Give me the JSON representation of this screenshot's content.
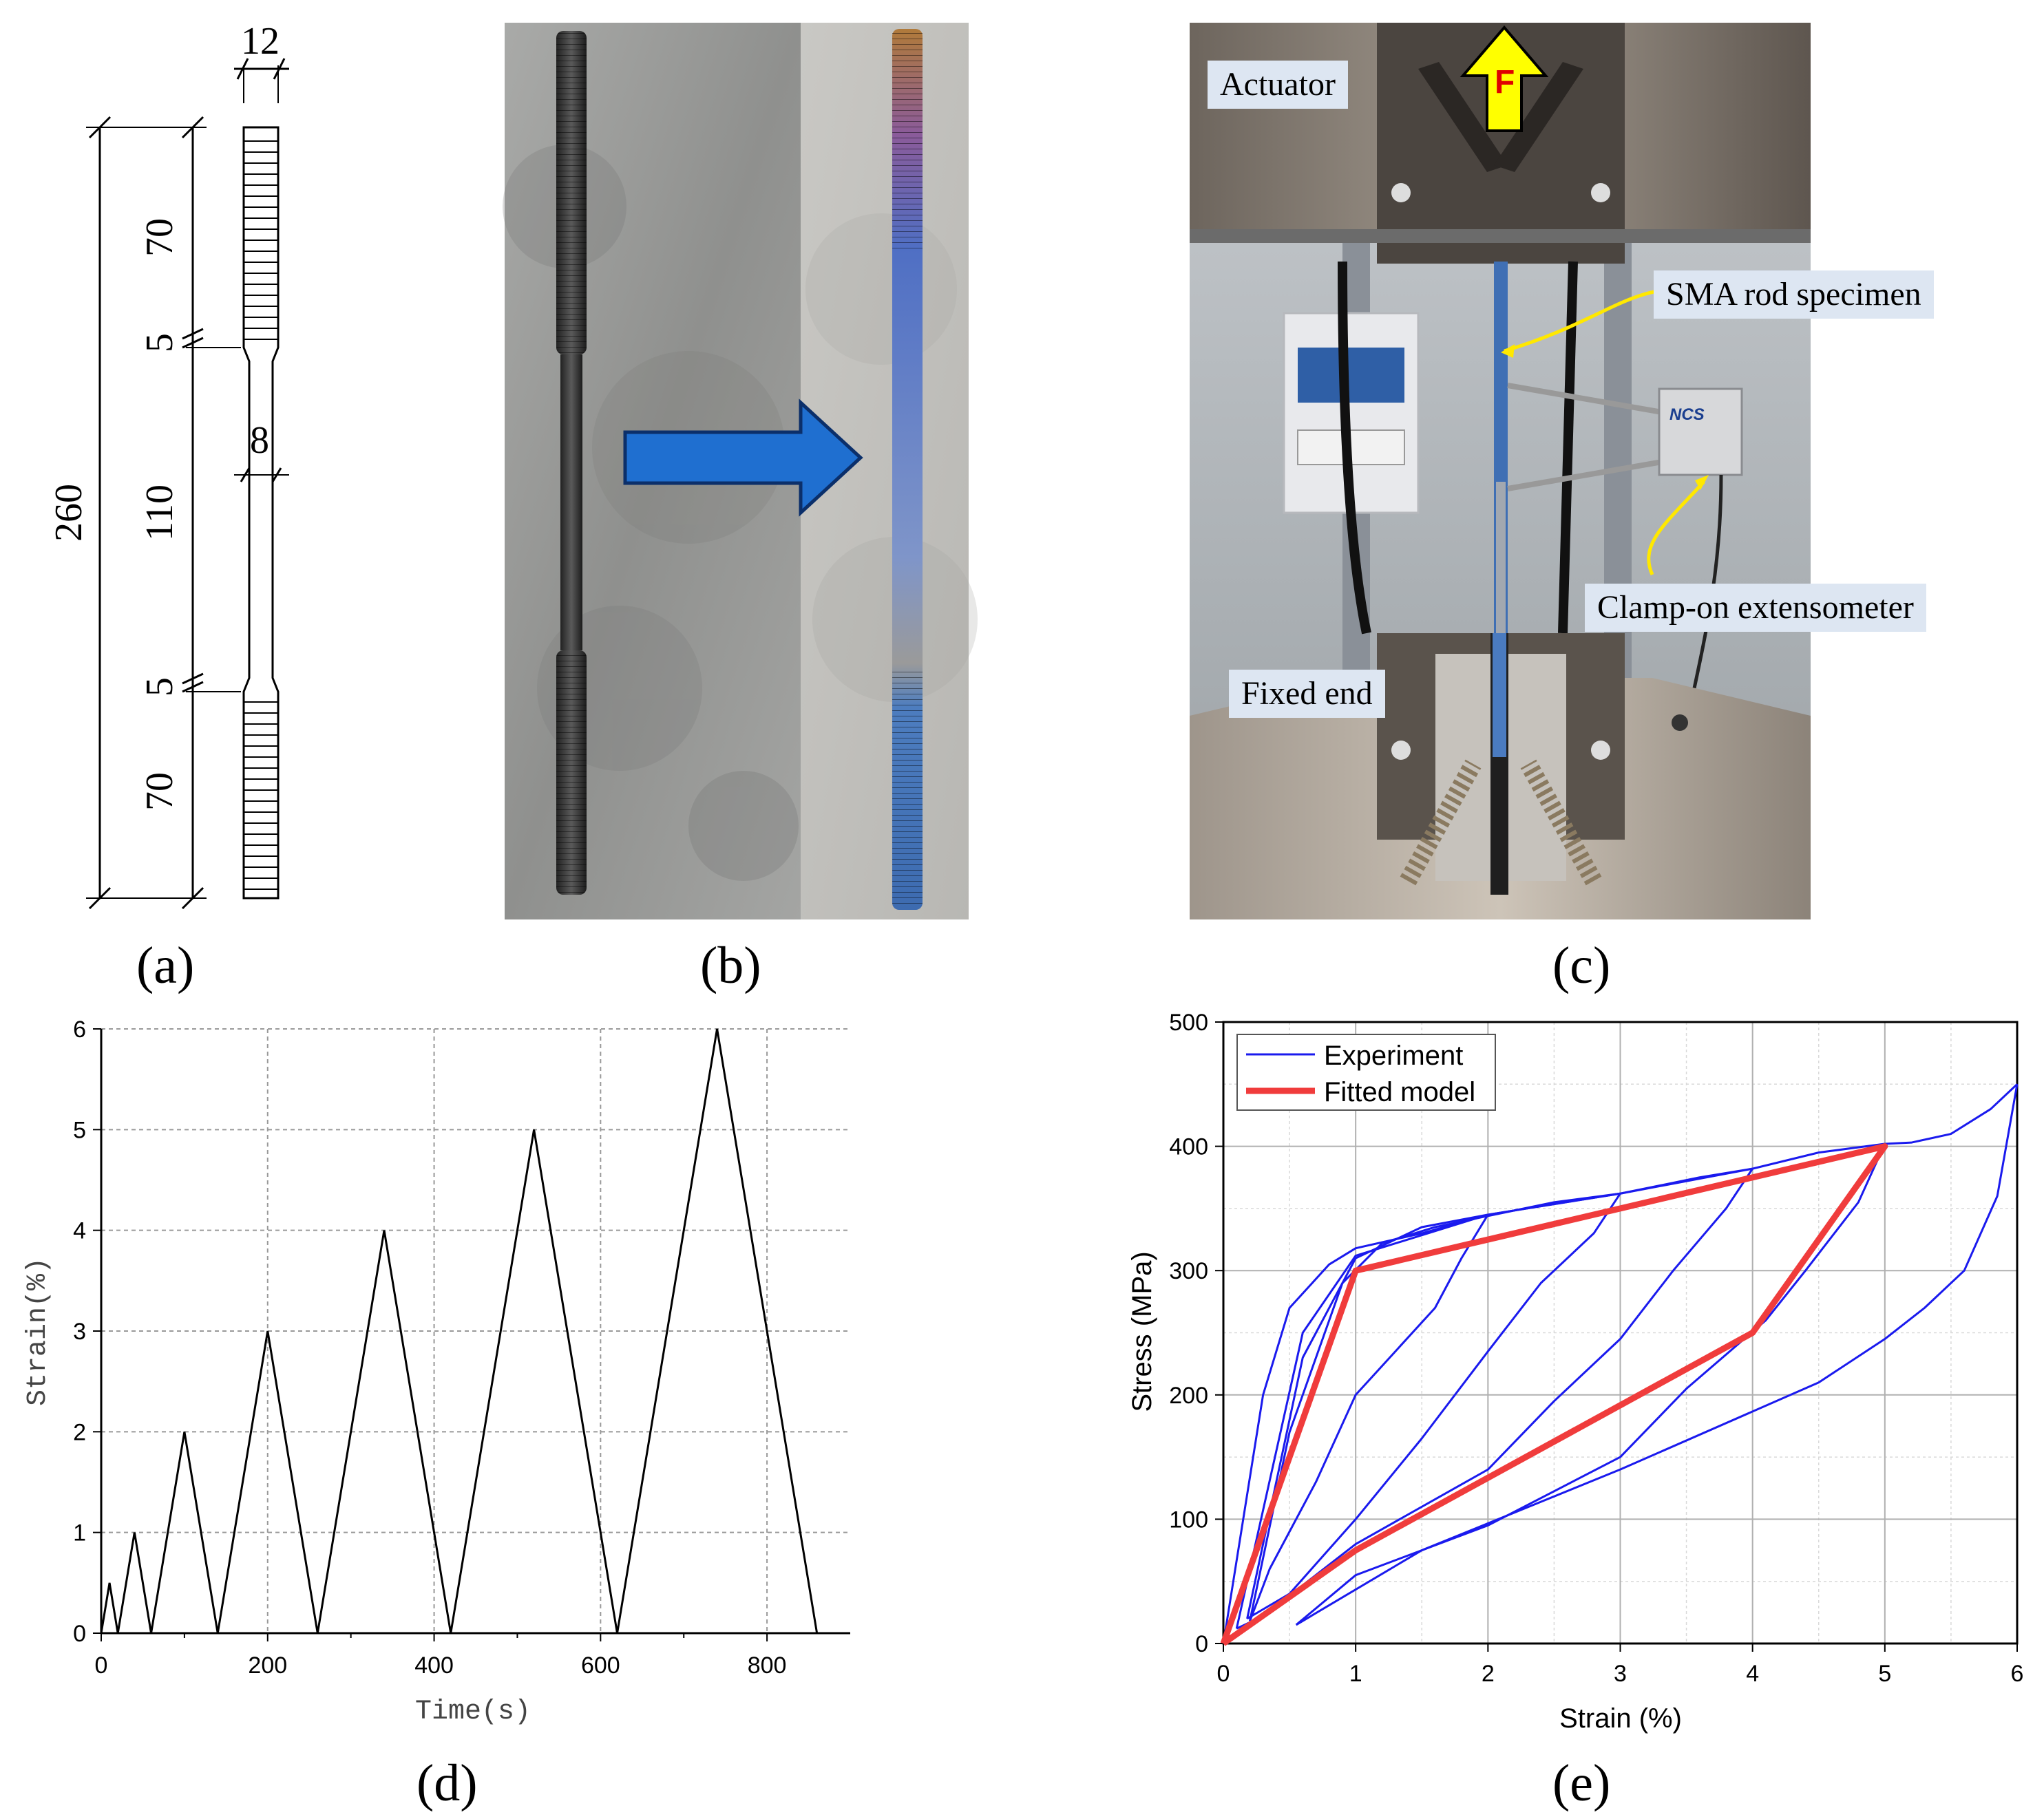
{
  "panels": {
    "a": {
      "label": "(a)",
      "dims": {
        "width": "12",
        "total": "260",
        "grip_top": "70",
        "fillet_top": "5",
        "gauge_dia": "8",
        "gauge_len": "110",
        "fillet_bottom": "5",
        "grip_bottom": "70"
      }
    },
    "b": {
      "label": "(b)"
    },
    "c": {
      "label": "(c)",
      "force_label": "F",
      "callouts": {
        "actuator": "Actuator",
        "specimen": "SMA rod specimen",
        "extensometer": "Clamp-on extensometer",
        "fixed_end": "Fixed end"
      },
      "device_brand": "NCS"
    },
    "d": {
      "label": "(d)"
    },
    "e": {
      "label": "(e)"
    }
  },
  "colors": {
    "experiment": "#1a1aee",
    "fitted": "#f03c3c",
    "arrow_blue": "#1f6fd0",
    "force_arrow": "#ffff00",
    "label_box": "#dde6f2",
    "grid": "#b0b0b0"
  },
  "chart_data": [
    {
      "type": "line",
      "xlabel": "Time(s)",
      "ylabel": "Strain(%)",
      "xlim": [
        0,
        900
      ],
      "ylim": [
        0,
        6
      ],
      "xticks": [
        "0",
        "200",
        "400",
        "600",
        "800"
      ],
      "yticks": [
        "0",
        "1",
        "2",
        "3",
        "4",
        "5",
        "6"
      ],
      "grid": true,
      "series": [
        {
          "x": [
            0,
            10,
            20,
            40,
            60,
            100,
            140,
            200,
            260,
            340,
            420,
            520,
            620,
            740,
            860
          ],
          "y": [
            0,
            0.5,
            0,
            1,
            0,
            2,
            0,
            3,
            0,
            4,
            0,
            5,
            0,
            6,
            0
          ]
        }
      ]
    },
    {
      "type": "line",
      "xlabel": "Strain (%)",
      "ylabel": "Stress (MPa)",
      "xlim": [
        0,
        6
      ],
      "ylim": [
        0,
        500
      ],
      "xticks": [
        "0",
        "1",
        "2",
        "3",
        "4",
        "5",
        "6"
      ],
      "yticks": [
        "0",
        "100",
        "200",
        "300",
        "400",
        "500"
      ],
      "grid": true,
      "legend_position": "top-left",
      "series": [
        {
          "name": "Experiment",
          "segments": [
            [
              [
                0,
                0
              ],
              [
                0.3,
                200
              ],
              [
                0.5,
                270
              ],
              [
                0.8,
                305
              ],
              [
                1.0,
                318
              ],
              [
                1.5,
                330
              ],
              [
                2.0,
                345
              ]
            ],
            [
              [
                2.0,
                345
              ],
              [
                1.8,
                310
              ],
              [
                1.6,
                270
              ],
              [
                1.3,
                235
              ],
              [
                1.0,
                200
              ],
              [
                0.7,
                130
              ],
              [
                0.35,
                60
              ],
              [
                0.2,
                18
              ]
            ],
            [
              [
                0.2,
                18
              ],
              [
                0.5,
                170
              ],
              [
                0.9,
                290
              ],
              [
                1.2,
                322
              ],
              [
                1.6,
                335
              ],
              [
                2.0,
                344
              ],
              [
                2.5,
                355
              ],
              [
                3.0,
                362
              ]
            ],
            [
              [
                3.0,
                362
              ],
              [
                2.8,
                330
              ],
              [
                2.4,
                290
              ],
              [
                2.0,
                235
              ],
              [
                1.5,
                165
              ],
              [
                1.0,
                100
              ],
              [
                0.5,
                40
              ],
              [
                0.18,
                20
              ]
            ],
            [
              [
                0.18,
                20
              ],
              [
                0.6,
                230
              ],
              [
                1.0,
                310
              ],
              [
                1.5,
                335
              ],
              [
                2.0,
                345
              ],
              [
                3.0,
                362
              ],
              [
                3.6,
                375
              ],
              [
                4.0,
                382
              ]
            ],
            [
              [
                4.0,
                382
              ],
              [
                3.8,
                350
              ],
              [
                3.4,
                300
              ],
              [
                3.0,
                245
              ],
              [
                2.5,
                195
              ],
              [
                2.0,
                140
              ],
              [
                1.0,
                80
              ],
              [
                0.3,
                22
              ],
              [
                0.1,
                12
              ]
            ],
            [
              [
                0.1,
                12
              ],
              [
                0.6,
                250
              ],
              [
                1.0,
                312
              ],
              [
                2.0,
                345
              ],
              [
                3.0,
                362
              ],
              [
                4.0,
                382
              ],
              [
                4.5,
                395
              ],
              [
                5.0,
                402
              ]
            ],
            [
              [
                5.0,
                402
              ],
              [
                4.8,
                355
              ],
              [
                4.4,
                300
              ],
              [
                4.1,
                260
              ],
              [
                3.5,
                205
              ],
              [
                3.0,
                150
              ],
              [
                2.0,
                95
              ],
              [
                1.0,
                55
              ],
              [
                0.55,
                15
              ]
            ],
            [
              [
                0.55,
                15
              ],
              [
                1.5,
                75
              ],
              [
                3.0,
                140
              ],
              [
                4.5,
                210
              ],
              [
                5.0,
                245
              ],
              [
                5.3,
                270
              ],
              [
                5.6,
                300
              ],
              [
                5.85,
                360
              ],
              [
                6.0,
                450
              ]
            ],
            [
              [
                6.0,
                450
              ],
              [
                5.8,
                430
              ],
              [
                5.5,
                410
              ],
              [
                5.2,
                403
              ],
              [
                5.0,
                402
              ]
            ]
          ]
        },
        {
          "name": "Fitted model",
          "points": [
            [
              0,
              0
            ],
            [
              1,
              300
            ],
            [
              5,
              400
            ],
            [
              4,
              250
            ],
            [
              1,
              75
            ],
            [
              0,
              0
            ]
          ]
        }
      ]
    }
  ]
}
